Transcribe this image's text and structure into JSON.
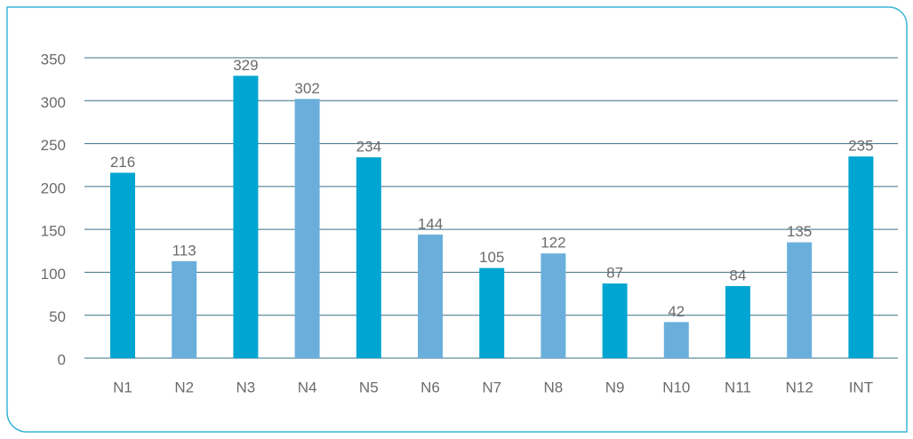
{
  "chart_data": {
    "type": "bar",
    "categories": [
      "N1",
      "N2",
      "N3",
      "N4",
      "N5",
      "N6",
      "N7",
      "N8",
      "N9",
      "N10",
      "N11",
      "N12",
      "INT"
    ],
    "values": [
      216,
      113,
      329,
      302,
      234,
      144,
      105,
      122,
      87,
      42,
      84,
      135,
      235
    ],
    "colors": [
      "#00a5d2",
      "#6aafdc",
      "#00a5d2",
      "#6aafdc",
      "#00a5d2",
      "#6aafdc",
      "#00a5d2",
      "#6aafdc",
      "#00a5d2",
      "#6aafdc",
      "#00a5d2",
      "#6aafdc",
      "#00a5d2"
    ],
    "ylim": [
      0,
      350
    ],
    "yticks": [
      0,
      50,
      100,
      150,
      200,
      250,
      300,
      350
    ],
    "grid": true
  }
}
